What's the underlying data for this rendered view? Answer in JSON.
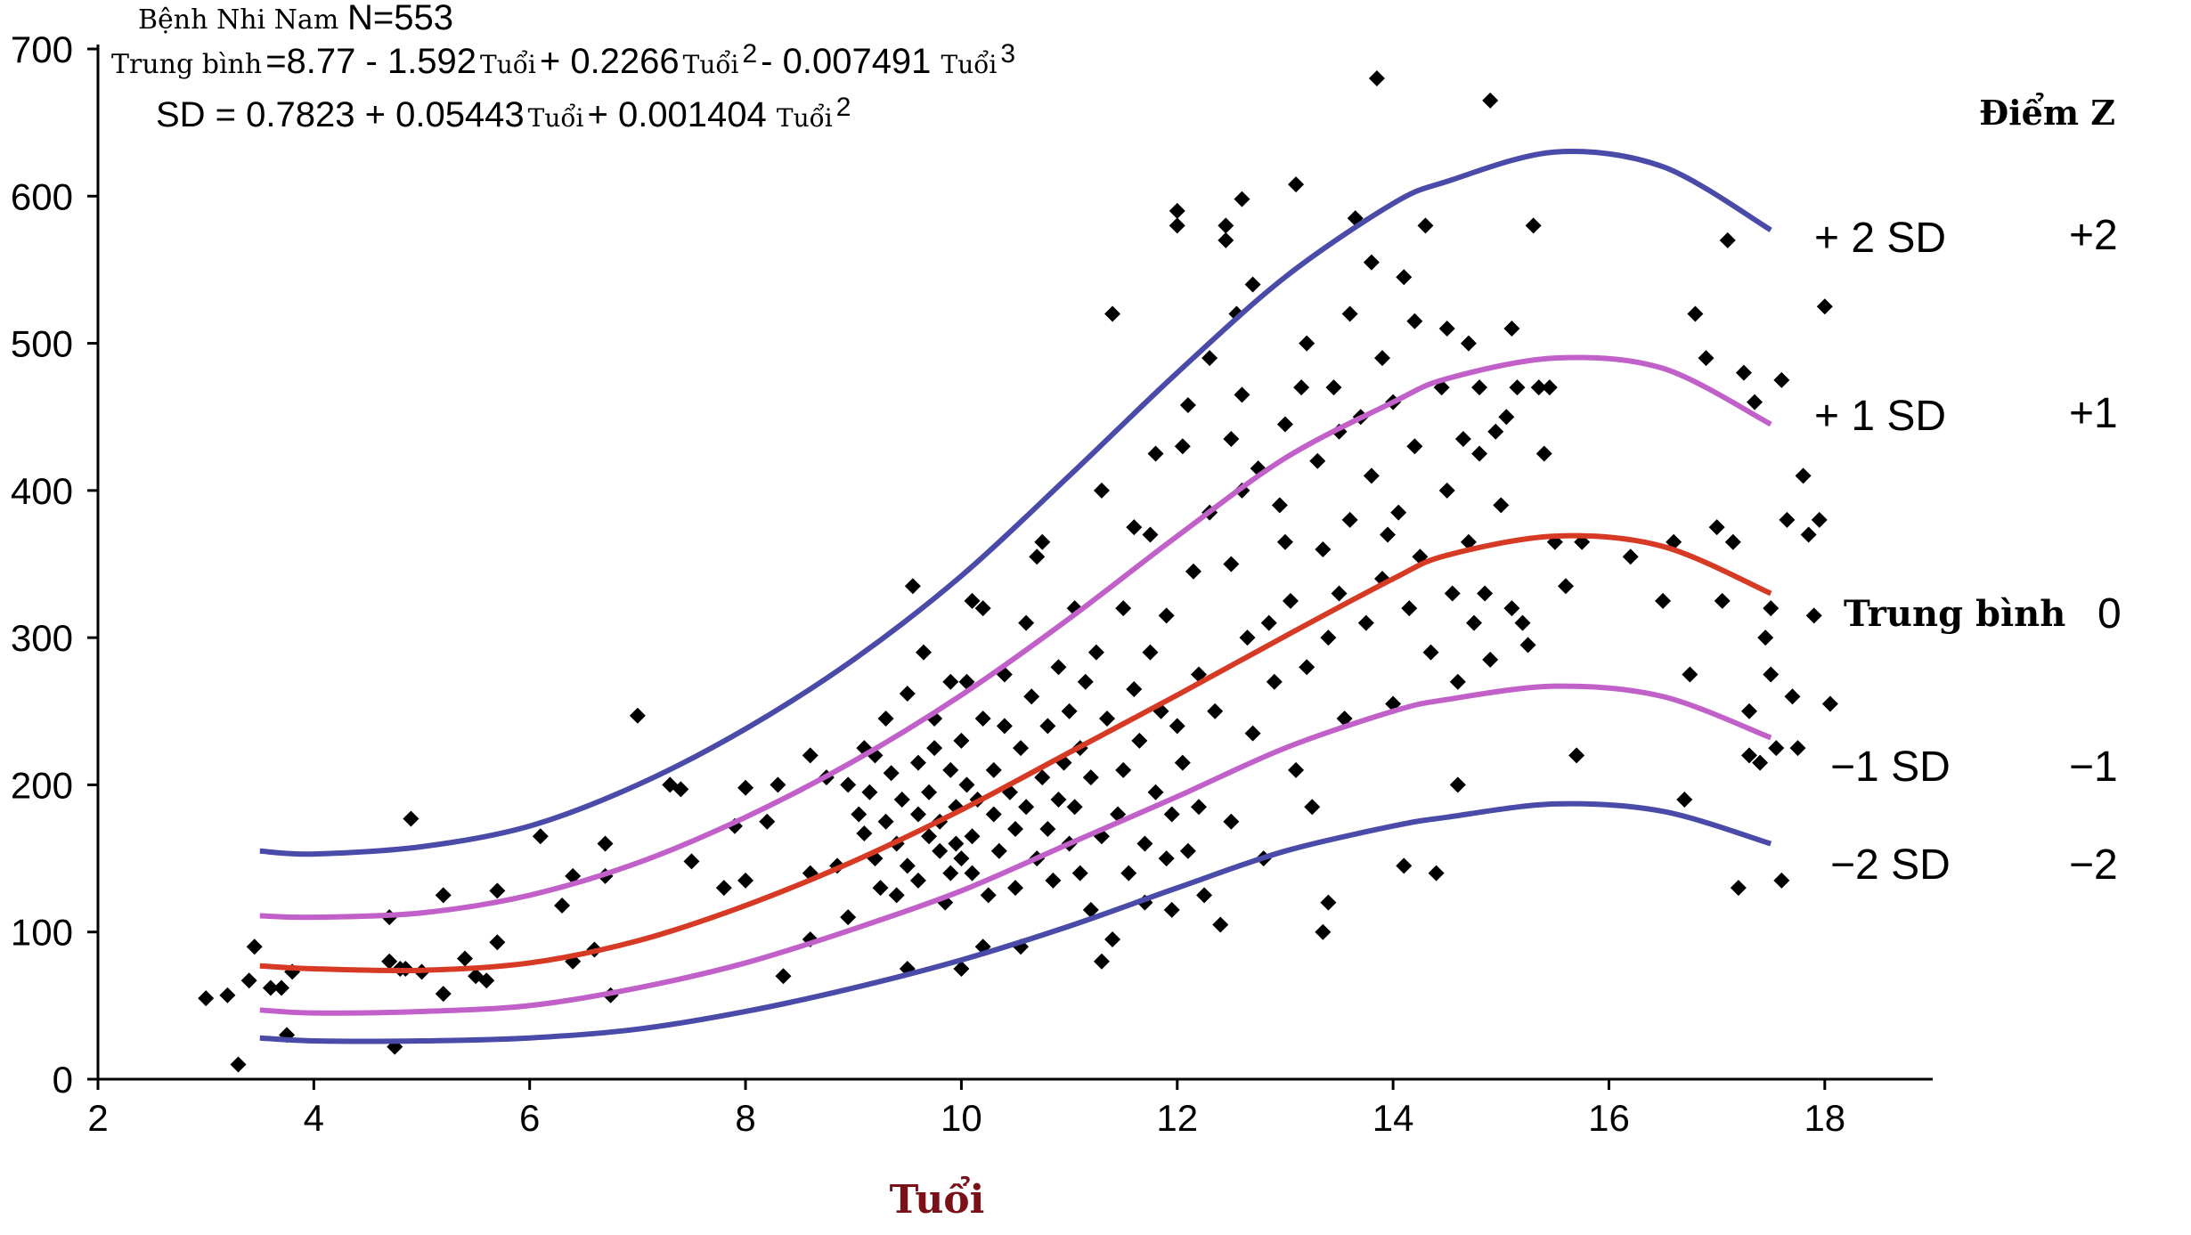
{
  "header": {
    "group_label": "Bệnh Nhi Nam",
    "n_label": "N=553",
    "mean_prefix": "Trung bình",
    "mean_parts": [
      "=8.77 - 1.592",
      "Tuổi",
      " + 0.2266",
      "Tuổi",
      " 2",
      " - 0.007491 ",
      "Tuổi",
      " 3"
    ],
    "sd_parts": [
      "SD = 0.7823 + 0.05443",
      "Tuổi",
      " + 0.001404 ",
      "Tuổi",
      "2"
    ]
  },
  "zscore_header": "Điểm Z",
  "curve_labels": [
    {
      "label": "+ 2 SD",
      "z": "+2"
    },
    {
      "label": "+ 1 SD",
      "z": "+1"
    },
    {
      "label": "Trung bình",
      "z": "0"
    },
    {
      "label": "−1 SD",
      "z": "−1"
    },
    {
      "label": "−2 SD",
      "z": "−2"
    }
  ],
  "colors": {
    "sd2": "#4a4aa8",
    "sd1": "#c060c8",
    "mean": "#d63a24",
    "points": "#000000",
    "xlabel": "#7a1018"
  },
  "chart_data": {
    "type": "scatter",
    "xlabel": "Tuổi",
    "ylabel": "",
    "xlim": [
      2,
      19
    ],
    "ylim": [
      0,
      700
    ],
    "xticks": [
      2,
      4,
      6,
      8,
      10,
      12,
      14,
      16,
      18
    ],
    "yticks": [
      0,
      100,
      200,
      300,
      400,
      500,
      600,
      700
    ],
    "grid": false,
    "curves": [
      {
        "name": "+ 2 SD",
        "color_key": "sd2",
        "x": [
          3.5,
          4,
          5,
          6,
          7,
          8,
          9,
          10,
          11,
          12,
          13,
          14,
          14.5,
          15.5,
          16.5,
          17.5
        ],
        "y": [
          155,
          153,
          158,
          172,
          200,
          238,
          285,
          342,
          410,
          480,
          545,
          595,
          610,
          630,
          620,
          577
        ]
      },
      {
        "name": "+ 1 SD",
        "color_key": "sd1",
        "x": [
          3.5,
          4,
          5,
          6,
          7,
          8,
          9,
          10,
          11,
          12,
          13,
          14,
          14.5,
          15.5,
          16.5,
          17.5
        ],
        "y": [
          111,
          110,
          113,
          125,
          147,
          178,
          216,
          261,
          313,
          369,
          422,
          460,
          476,
          490,
          483,
          445
        ]
      },
      {
        "name": "Trung bình",
        "color_key": "mean",
        "x": [
          3.5,
          4,
          5,
          6,
          7,
          8,
          9,
          10,
          11,
          12,
          13,
          14,
          14.5,
          15.5,
          16.5,
          17.5
        ],
        "y": [
          77,
          75,
          74,
          79,
          94,
          118,
          148,
          183,
          222,
          261,
          301,
          340,
          356,
          369,
          362,
          330
        ]
      },
      {
        "name": "−1 SD",
        "color_key": "sd1",
        "x": [
          3.5,
          4,
          5,
          6,
          7,
          8,
          9,
          10,
          11,
          12,
          13,
          14,
          14.5,
          15.5,
          16.5,
          17.5
        ],
        "y": [
          47,
          45,
          46,
          50,
          62,
          79,
          102,
          128,
          160,
          192,
          225,
          250,
          258,
          267,
          260,
          232
        ]
      },
      {
        "name": "−2 SD",
        "color_key": "sd2",
        "x": [
          3.5,
          4,
          5,
          6,
          7,
          8,
          9,
          10,
          11,
          12,
          13,
          14,
          14.5,
          15.5,
          16.5,
          17.5
        ],
        "y": [
          28,
          26,
          26,
          28,
          34,
          46,
          62,
          81,
          104,
          130,
          155,
          172,
          178,
          187,
          182,
          160
        ]
      }
    ],
    "points": [
      [
        3.0,
        55
      ],
      [
        3.2,
        57
      ],
      [
        3.3,
        10
      ],
      [
        3.4,
        67
      ],
      [
        3.45,
        90
      ],
      [
        3.6,
        62
      ],
      [
        3.7,
        62
      ],
      [
        3.8,
        73
      ],
      [
        3.75,
        30
      ],
      [
        4.7,
        110
      ],
      [
        4.7,
        80
      ],
      [
        4.75,
        22
      ],
      [
        4.8,
        75
      ],
      [
        4.85,
        75
      ],
      [
        4.9,
        177
      ],
      [
        5.0,
        73
      ],
      [
        5.2,
        58
      ],
      [
        5.2,
        125
      ],
      [
        5.4,
        82
      ],
      [
        5.5,
        70
      ],
      [
        5.6,
        67
      ],
      [
        5.7,
        93
      ],
      [
        5.7,
        128
      ],
      [
        6.1,
        165
      ],
      [
        6.3,
        118
      ],
      [
        6.4,
        138
      ],
      [
        6.4,
        80
      ],
      [
        6.6,
        88
      ],
      [
        6.7,
        160
      ],
      [
        6.7,
        138
      ],
      [
        6.75,
        57
      ],
      [
        7.0,
        247
      ],
      [
        7.3,
        200
      ],
      [
        7.4,
        197
      ],
      [
        7.5,
        148
      ],
      [
        7.8,
        130
      ],
      [
        7.9,
        172
      ],
      [
        8.0,
        198
      ],
      [
        8.0,
        135
      ],
      [
        8.2,
        175
      ],
      [
        8.3,
        200
      ],
      [
        8.35,
        70
      ],
      [
        8.6,
        220
      ],
      [
        8.6,
        140
      ],
      [
        8.6,
        95
      ],
      [
        8.75,
        205
      ],
      [
        8.85,
        145
      ],
      [
        8.95,
        110
      ],
      [
        8.95,
        200
      ],
      [
        9.05,
        180
      ],
      [
        9.1,
        167
      ],
      [
        9.1,
        225
      ],
      [
        9.15,
        195
      ],
      [
        9.2,
        220
      ],
      [
        9.2,
        150
      ],
      [
        9.25,
        130
      ],
      [
        9.3,
        175
      ],
      [
        9.3,
        245
      ],
      [
        9.35,
        208
      ],
      [
        9.4,
        160
      ],
      [
        9.4,
        125
      ],
      [
        9.45,
        190
      ],
      [
        9.5,
        75
      ],
      [
        9.5,
        262
      ],
      [
        9.5,
        145
      ],
      [
        9.55,
        335
      ],
      [
        9.6,
        180
      ],
      [
        9.6,
        215
      ],
      [
        9.6,
        135
      ],
      [
        9.65,
        290
      ],
      [
        9.7,
        165
      ],
      [
        9.7,
        195
      ],
      [
        9.75,
        245
      ],
      [
        9.75,
        225
      ],
      [
        9.8,
        155
      ],
      [
        9.8,
        175
      ],
      [
        9.85,
        120
      ],
      [
        9.9,
        140
      ],
      [
        9.9,
        210
      ],
      [
        9.9,
        270
      ],
      [
        9.95,
        185
      ],
      [
        9.95,
        160
      ],
      [
        10.0,
        75
      ],
      [
        10.0,
        150
      ],
      [
        10.0,
        230
      ],
      [
        10.05,
        200
      ],
      [
        10.05,
        270
      ],
      [
        10.1,
        325
      ],
      [
        10.1,
        165
      ],
      [
        10.1,
        140
      ],
      [
        10.15,
        190
      ],
      [
        10.2,
        90
      ],
      [
        10.2,
        320
      ],
      [
        10.2,
        245
      ],
      [
        10.25,
        125
      ],
      [
        10.3,
        180
      ],
      [
        10.3,
        210
      ],
      [
        10.35,
        155
      ],
      [
        10.4,
        240
      ],
      [
        10.4,
        275
      ],
      [
        10.45,
        195
      ],
      [
        10.5,
        170
      ],
      [
        10.5,
        130
      ],
      [
        10.55,
        225
      ],
      [
        10.55,
        90
      ],
      [
        10.6,
        310
      ],
      [
        10.6,
        185
      ],
      [
        10.65,
        260
      ],
      [
        10.7,
        355
      ],
      [
        10.7,
        150
      ],
      [
        10.75,
        365
      ],
      [
        10.75,
        205
      ],
      [
        10.8,
        240
      ],
      [
        10.8,
        170
      ],
      [
        10.85,
        135
      ],
      [
        10.9,
        280
      ],
      [
        10.9,
        190
      ],
      [
        10.95,
        215
      ],
      [
        11.0,
        160
      ],
      [
        11.0,
        250
      ],
      [
        11.05,
        320
      ],
      [
        11.05,
        185
      ],
      [
        11.1,
        140
      ],
      [
        11.1,
        225
      ],
      [
        11.15,
        270
      ],
      [
        11.2,
        115
      ],
      [
        11.2,
        205
      ],
      [
        11.25,
        290
      ],
      [
        11.3,
        165
      ],
      [
        11.3,
        400
      ],
      [
        11.3,
        80
      ],
      [
        11.35,
        245
      ],
      [
        11.4,
        95
      ],
      [
        11.4,
        520
      ],
      [
        11.45,
        180
      ],
      [
        11.5,
        210
      ],
      [
        11.5,
        320
      ],
      [
        11.55,
        140
      ],
      [
        11.6,
        265
      ],
      [
        11.6,
        375
      ],
      [
        11.65,
        230
      ],
      [
        11.7,
        160
      ],
      [
        11.7,
        120
      ],
      [
        11.75,
        370
      ],
      [
        11.75,
        290
      ],
      [
        11.8,
        195
      ],
      [
        11.8,
        425
      ],
      [
        11.85,
        250
      ],
      [
        11.9,
        150
      ],
      [
        11.9,
        315
      ],
      [
        11.95,
        180
      ],
      [
        11.95,
        115
      ],
      [
        12.0,
        590
      ],
      [
        12.0,
        580
      ],
      [
        12.0,
        240
      ],
      [
        12.05,
        430
      ],
      [
        12.05,
        215
      ],
      [
        12.1,
        458
      ],
      [
        12.1,
        155
      ],
      [
        12.15,
        345
      ],
      [
        12.2,
        275
      ],
      [
        12.2,
        185
      ],
      [
        12.25,
        125
      ],
      [
        12.3,
        490
      ],
      [
        12.3,
        385
      ],
      [
        12.35,
        250
      ],
      [
        12.4,
        105
      ],
      [
        12.45,
        580
      ],
      [
        12.45,
        570
      ],
      [
        12.5,
        435
      ],
      [
        12.5,
        350
      ],
      [
        12.5,
        175
      ],
      [
        12.55,
        520
      ],
      [
        12.6,
        598
      ],
      [
        12.6,
        465
      ],
      [
        12.6,
        400
      ],
      [
        12.65,
        300
      ],
      [
        12.7,
        540
      ],
      [
        12.7,
        235
      ],
      [
        12.75,
        415
      ],
      [
        12.8,
        150
      ],
      [
        12.85,
        310
      ],
      [
        12.9,
        270
      ],
      [
        12.95,
        390
      ],
      [
        13.0,
        445
      ],
      [
        13.0,
        365
      ],
      [
        13.05,
        325
      ],
      [
        13.1,
        608
      ],
      [
        13.1,
        210
      ],
      [
        13.15,
        470
      ],
      [
        13.2,
        500
      ],
      [
        13.2,
        280
      ],
      [
        13.25,
        185
      ],
      [
        13.3,
        420
      ],
      [
        13.35,
        360
      ],
      [
        13.35,
        100
      ],
      [
        13.4,
        120
      ],
      [
        13.4,
        300
      ],
      [
        13.45,
        470
      ],
      [
        13.5,
        440
      ],
      [
        13.5,
        330
      ],
      [
        13.55,
        245
      ],
      [
        13.6,
        520
      ],
      [
        13.6,
        380
      ],
      [
        13.65,
        585
      ],
      [
        13.7,
        450
      ],
      [
        13.75,
        310
      ],
      [
        13.8,
        555
      ],
      [
        13.8,
        410
      ],
      [
        13.85,
        680
      ],
      [
        13.9,
        490
      ],
      [
        13.9,
        340
      ],
      [
        13.95,
        370
      ],
      [
        14.0,
        460
      ],
      [
        14.0,
        255
      ],
      [
        14.05,
        385
      ],
      [
        14.1,
        545
      ],
      [
        14.1,
        145
      ],
      [
        14.15,
        320
      ],
      [
        14.2,
        515
      ],
      [
        14.2,
        430
      ],
      [
        14.25,
        355
      ],
      [
        14.3,
        580
      ],
      [
        14.35,
        290
      ],
      [
        14.4,
        140
      ],
      [
        14.45,
        470
      ],
      [
        14.5,
        510
      ],
      [
        14.5,
        400
      ],
      [
        14.55,
        330
      ],
      [
        14.6,
        200
      ],
      [
        14.6,
        270
      ],
      [
        14.65,
        435
      ],
      [
        14.7,
        500
      ],
      [
        14.7,
        365
      ],
      [
        14.75,
        310
      ],
      [
        14.8,
        470
      ],
      [
        14.8,
        425
      ],
      [
        14.85,
        330
      ],
      [
        14.9,
        665
      ],
      [
        14.9,
        285
      ],
      [
        14.95,
        440
      ],
      [
        15.0,
        390
      ],
      [
        15.05,
        450
      ],
      [
        15.1,
        510
      ],
      [
        15.1,
        320
      ],
      [
        15.15,
        470
      ],
      [
        15.2,
        310
      ],
      [
        15.25,
        295
      ],
      [
        15.3,
        580
      ],
      [
        15.35,
        470
      ],
      [
        15.4,
        425
      ],
      [
        15.45,
        470
      ],
      [
        15.5,
        365
      ],
      [
        15.6,
        335
      ],
      [
        15.7,
        220
      ],
      [
        15.75,
        365
      ],
      [
        16.2,
        355
      ],
      [
        16.5,
        325
      ],
      [
        16.6,
        365
      ],
      [
        16.7,
        190
      ],
      [
        16.75,
        275
      ],
      [
        16.8,
        520
      ],
      [
        16.9,
        490
      ],
      [
        17.0,
        375
      ],
      [
        17.05,
        325
      ],
      [
        17.1,
        570
      ],
      [
        17.15,
        365
      ],
      [
        17.2,
        130
      ],
      [
        17.25,
        480
      ],
      [
        17.3,
        250
      ],
      [
        17.3,
        220
      ],
      [
        17.35,
        460
      ],
      [
        17.4,
        215
      ],
      [
        17.45,
        300
      ],
      [
        17.5,
        320
      ],
      [
        17.5,
        275
      ],
      [
        17.55,
        225
      ],
      [
        17.6,
        135
      ],
      [
        17.6,
        475
      ],
      [
        17.65,
        380
      ],
      [
        17.7,
        260
      ],
      [
        17.75,
        225
      ],
      [
        17.8,
        410
      ],
      [
        17.85,
        370
      ],
      [
        17.9,
        315
      ],
      [
        17.95,
        380
      ],
      [
        18.0,
        525
      ],
      [
        18.05,
        255
      ]
    ]
  }
}
